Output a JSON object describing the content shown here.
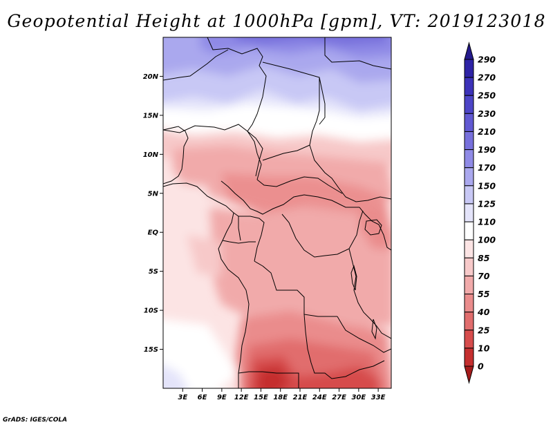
{
  "title": "Geopotential Height at 1000hPa [gpm], VT: 2019123018",
  "credit": "GrADS: IGES/COLA",
  "map": {
    "lon_labels": [
      "3E",
      "6E",
      "9E",
      "12E",
      "15E",
      "18E",
      "21E",
      "24E",
      "27E",
      "30E",
      "33E"
    ],
    "lat_labels": [
      "20N",
      "15N",
      "10N",
      "5N",
      "EQ",
      "5S",
      "10S",
      "15S"
    ],
    "lon_range": [
      0,
      35
    ],
    "lat_range": [
      -20,
      25
    ]
  },
  "colorbar": {
    "levels": [
      "290",
      "270",
      "250",
      "230",
      "210",
      "190",
      "170",
      "150",
      "125",
      "110",
      "100",
      "85",
      "70",
      "55",
      "40",
      "25",
      "10",
      "0"
    ],
    "colors": [
      "#241a8c",
      "#2e23a6",
      "#3c32b9",
      "#4d45c7",
      "#6159d2",
      "#7770dc",
      "#8f8ae6",
      "#aaa8ee",
      "#c8c8f5",
      "#e4e4fa",
      "#ffffff",
      "#fce4e4",
      "#f7c9c9",
      "#f1aaaa",
      "#ea8c8c",
      "#e16d6d",
      "#d64c4c",
      "#c52f2f",
      "#a51b1b"
    ]
  },
  "chart_data": {
    "type": "heatmap",
    "title": "Geopotential Height at 1000hPa [gpm], VT: 2019123018",
    "variable": "Geopotential Height at 1000hPa",
    "units": "gpm",
    "valid_time": "2019123018",
    "region": "Central Africa",
    "x_range_deg_lon": [
      0,
      35
    ],
    "y_range_deg_lat": [
      -20,
      25
    ],
    "contour_levels": [
      0,
      10,
      25,
      40,
      55,
      70,
      85,
      100,
      110,
      125,
      150,
      170,
      190,
      210,
      230,
      250,
      270,
      290
    ]
  }
}
